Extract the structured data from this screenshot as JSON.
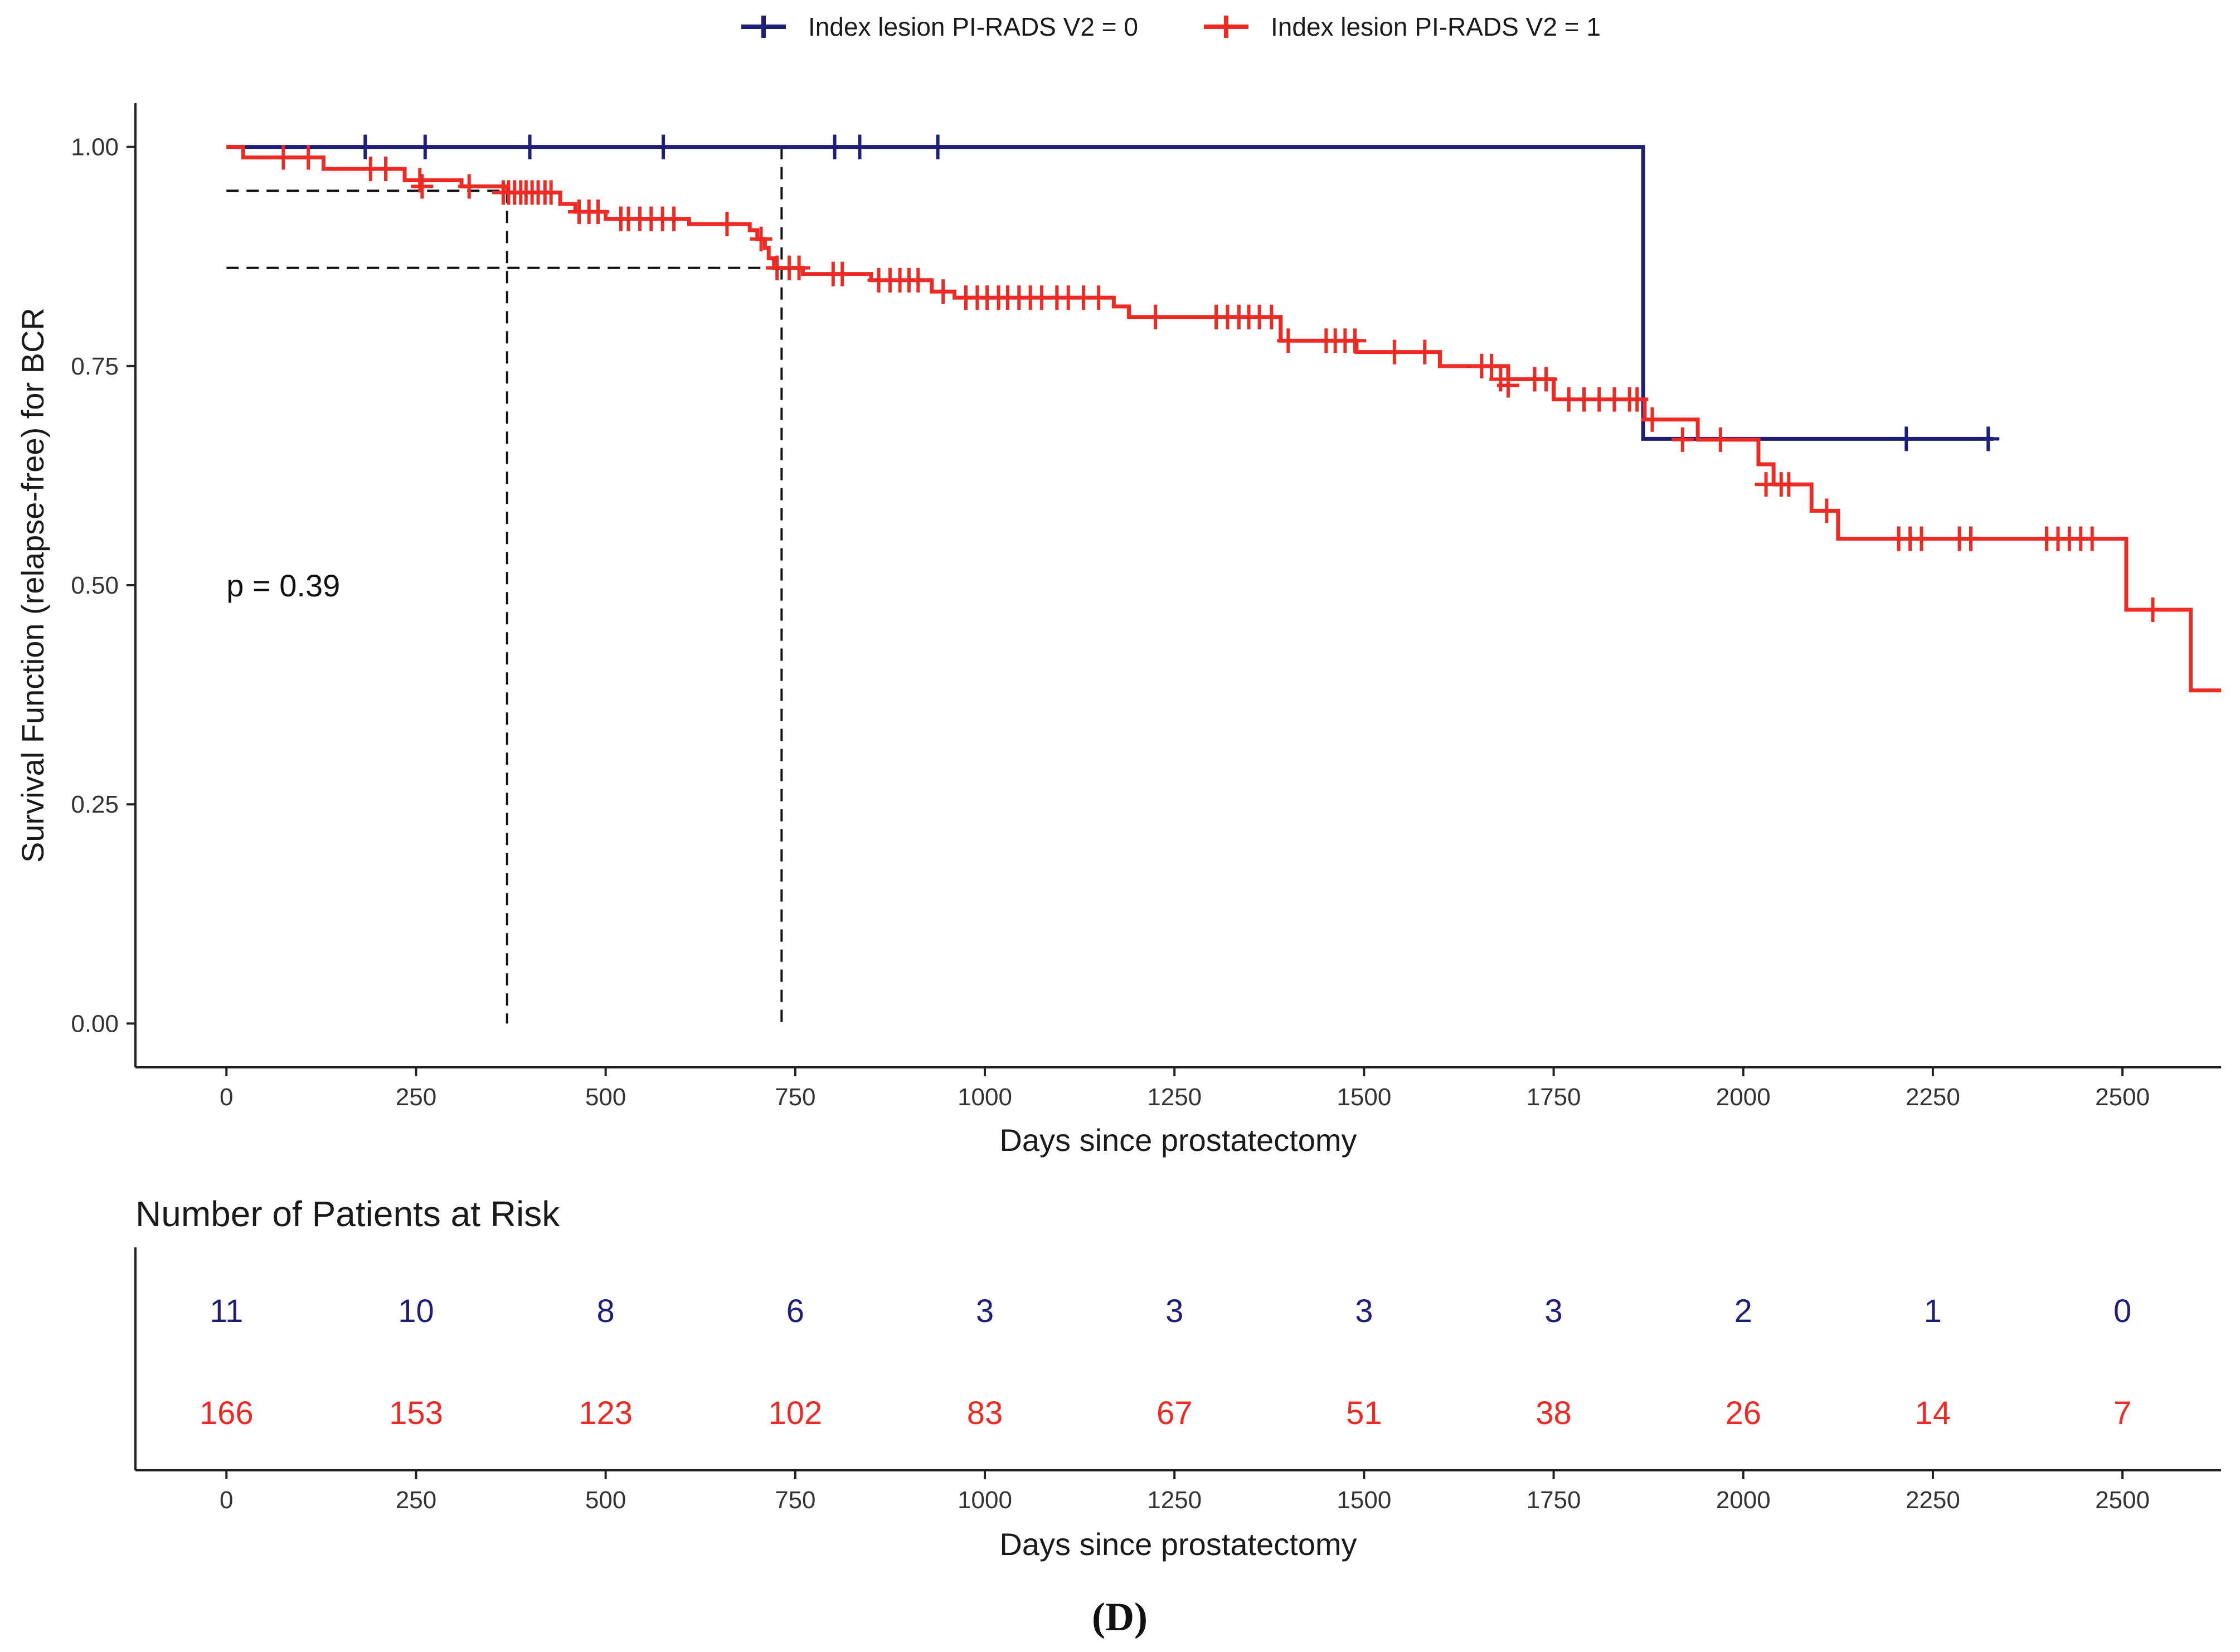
{
  "figure": {
    "panel_label": "(D)"
  },
  "chart_data": {
    "type": "line",
    "subtype": "kaplan-meier",
    "xlabel": "Days since prostatectomy",
    "ylabel": "Survival Function (relapse-free) for BCR",
    "xlim": [
      -120,
      2630
    ],
    "ylim": [
      -0.05,
      1.05
    ],
    "x_ticks": [
      0,
      250,
      500,
      750,
      1000,
      1250,
      1500,
      1750,
      2000,
      2250,
      2500
    ],
    "y_ticks": [
      0.0,
      0.25,
      0.5,
      0.75,
      1.0
    ],
    "y_tick_labels": [
      "0.00",
      "0.25",
      "0.50",
      "0.75",
      "1.00"
    ],
    "annotation": "p = 0.39",
    "annotation_pos": [
      0,
      0.5
    ],
    "legend_position": "top",
    "reference_lines": {
      "horizontal": [
        {
          "y": 0.95,
          "x_end": 370
        },
        {
          "y": 0.862,
          "x_end": 732
        }
      ],
      "vertical": [
        {
          "x": 370,
          "y_end": 0.95
        },
        {
          "x": 732,
          "y_end": 1.0
        }
      ]
    },
    "series": [
      {
        "name": "Index lesion PI-RADS V2 = 0",
        "color": "#1f1f7a",
        "steps": [
          [
            0,
            1.0
          ],
          [
            1868,
            1.0
          ],
          [
            1868,
            0.667
          ],
          [
            2330,
            0.667
          ]
        ],
        "censors": [
          [
            183,
            1.0
          ],
          [
            262,
            1.0
          ],
          [
            400,
            1.0
          ],
          [
            576,
            1.0
          ],
          [
            802,
            1.0
          ],
          [
            835,
            1.0
          ],
          [
            938,
            1.0
          ],
          [
            2215,
            0.667
          ],
          [
            2323,
            0.667
          ]
        ]
      },
      {
        "name": "Index lesion PI-RADS V2 = 1",
        "color": "#ee2a24",
        "steps": [
          [
            0,
            1.0
          ],
          [
            22,
            1.0
          ],
          [
            22,
            0.988
          ],
          [
            128,
            0.988
          ],
          [
            128,
            0.975
          ],
          [
            235,
            0.975
          ],
          [
            235,
            0.962
          ],
          [
            310,
            0.962
          ],
          [
            310,
            0.955
          ],
          [
            370,
            0.955
          ],
          [
            370,
            0.948
          ],
          [
            440,
            0.948
          ],
          [
            440,
            0.935
          ],
          [
            460,
            0.935
          ],
          [
            460,
            0.926
          ],
          [
            500,
            0.926
          ],
          [
            500,
            0.918
          ],
          [
            610,
            0.918
          ],
          [
            610,
            0.912
          ],
          [
            690,
            0.912
          ],
          [
            690,
            0.905
          ],
          [
            700,
            0.905
          ],
          [
            700,
            0.895
          ],
          [
            710,
            0.895
          ],
          [
            710,
            0.885
          ],
          [
            715,
            0.885
          ],
          [
            715,
            0.873
          ],
          [
            722,
            0.873
          ],
          [
            722,
            0.862
          ],
          [
            760,
            0.862
          ],
          [
            760,
            0.855
          ],
          [
            850,
            0.855
          ],
          [
            850,
            0.848
          ],
          [
            930,
            0.848
          ],
          [
            930,
            0.835
          ],
          [
            960,
            0.835
          ],
          [
            960,
            0.828
          ],
          [
            1170,
            0.828
          ],
          [
            1170,
            0.818
          ],
          [
            1190,
            0.818
          ],
          [
            1190,
            0.806
          ],
          [
            1390,
            0.806
          ],
          [
            1390,
            0.779
          ],
          [
            1490,
            0.779
          ],
          [
            1490,
            0.766
          ],
          [
            1600,
            0.766
          ],
          [
            1600,
            0.75
          ],
          [
            1690,
            0.75
          ],
          [
            1690,
            0.735
          ],
          [
            1750,
            0.735
          ],
          [
            1750,
            0.712
          ],
          [
            1870,
            0.712
          ],
          [
            1870,
            0.689
          ],
          [
            1940,
            0.689
          ],
          [
            1940,
            0.666
          ],
          [
            2020,
            0.666
          ],
          [
            2020,
            0.638
          ],
          [
            2040,
            0.638
          ],
          [
            2040,
            0.615
          ],
          [
            2090,
            0.615
          ],
          [
            2090,
            0.585
          ],
          [
            2125,
            0.585
          ],
          [
            2125,
            0.553
          ],
          [
            2505,
            0.553
          ],
          [
            2505,
            0.472
          ],
          [
            2590,
            0.472
          ],
          [
            2590,
            0.38
          ],
          [
            2630,
            0.38
          ]
        ],
        "censors": [
          [
            75,
            0.988
          ],
          [
            108,
            0.988
          ],
          [
            190,
            0.975
          ],
          [
            210,
            0.975
          ],
          [
            255,
            0.962
          ],
          [
            258,
            0.955
          ],
          [
            320,
            0.955
          ],
          [
            365,
            0.948
          ],
          [
            372,
            0.948
          ],
          [
            380,
            0.948
          ],
          [
            388,
            0.948
          ],
          [
            395,
            0.948
          ],
          [
            403,
            0.948
          ],
          [
            411,
            0.948
          ],
          [
            420,
            0.948
          ],
          [
            428,
            0.948
          ],
          [
            465,
            0.926
          ],
          [
            478,
            0.926
          ],
          [
            490,
            0.926
          ],
          [
            520,
            0.918
          ],
          [
            530,
            0.918
          ],
          [
            545,
            0.918
          ],
          [
            560,
            0.918
          ],
          [
            575,
            0.918
          ],
          [
            590,
            0.918
          ],
          [
            660,
            0.912
          ],
          [
            705,
            0.895
          ],
          [
            726,
            0.862
          ],
          [
            742,
            0.862
          ],
          [
            755,
            0.862
          ],
          [
            800,
            0.855
          ],
          [
            812,
            0.855
          ],
          [
            860,
            0.848
          ],
          [
            875,
            0.848
          ],
          [
            888,
            0.848
          ],
          [
            900,
            0.848
          ],
          [
            912,
            0.848
          ],
          [
            945,
            0.835
          ],
          [
            975,
            0.828
          ],
          [
            990,
            0.828
          ],
          [
            1003,
            0.828
          ],
          [
            1018,
            0.828
          ],
          [
            1030,
            0.828
          ],
          [
            1045,
            0.828
          ],
          [
            1060,
            0.828
          ],
          [
            1075,
            0.828
          ],
          [
            1095,
            0.828
          ],
          [
            1110,
            0.828
          ],
          [
            1130,
            0.828
          ],
          [
            1150,
            0.828
          ],
          [
            1225,
            0.806
          ],
          [
            1305,
            0.806
          ],
          [
            1320,
            0.806
          ],
          [
            1335,
            0.806
          ],
          [
            1348,
            0.806
          ],
          [
            1362,
            0.806
          ],
          [
            1378,
            0.806
          ],
          [
            1400,
            0.779
          ],
          [
            1450,
            0.779
          ],
          [
            1462,
            0.779
          ],
          [
            1475,
            0.779
          ],
          [
            1488,
            0.779
          ],
          [
            1540,
            0.766
          ],
          [
            1580,
            0.766
          ],
          [
            1655,
            0.75
          ],
          [
            1668,
            0.75
          ],
          [
            1680,
            0.735
          ],
          [
            1690,
            0.728
          ],
          [
            1725,
            0.735
          ],
          [
            1740,
            0.735
          ],
          [
            1770,
            0.712
          ],
          [
            1790,
            0.712
          ],
          [
            1810,
            0.712
          ],
          [
            1830,
            0.712
          ],
          [
            1850,
            0.712
          ],
          [
            1860,
            0.712
          ],
          [
            1880,
            0.689
          ],
          [
            1920,
            0.666
          ],
          [
            1970,
            0.666
          ],
          [
            2030,
            0.615
          ],
          [
            2050,
            0.615
          ],
          [
            2060,
            0.615
          ],
          [
            2110,
            0.585
          ],
          [
            2205,
            0.553
          ],
          [
            2220,
            0.553
          ],
          [
            2235,
            0.553
          ],
          [
            2285,
            0.553
          ],
          [
            2300,
            0.553
          ],
          [
            2400,
            0.553
          ],
          [
            2415,
            0.553
          ],
          [
            2430,
            0.553
          ],
          [
            2445,
            0.553
          ],
          [
            2460,
            0.553
          ],
          [
            2540,
            0.472
          ]
        ]
      }
    ]
  },
  "risk_table": {
    "title": "Number of Patients at Risk",
    "xlabel": "Days since prostatectomy",
    "times": [
      0,
      250,
      500,
      750,
      1000,
      1250,
      1500,
      1750,
      2000,
      2250,
      2500
    ],
    "rows": [
      {
        "group": "Index lesion PI-RADS V2 = 0",
        "color": "#1f1f7a",
        "counts": [
          "11",
          "10",
          "8",
          "6",
          "3",
          "3",
          "3",
          "3",
          "2",
          "1",
          "0"
        ]
      },
      {
        "group": "Index lesion PI-RADS V2 = 1",
        "color": "#ee2a24",
        "counts": [
          "166",
          "153",
          "123",
          "102",
          "83",
          "67",
          "51",
          "38",
          "26",
          "14",
          "7"
        ]
      }
    ]
  }
}
